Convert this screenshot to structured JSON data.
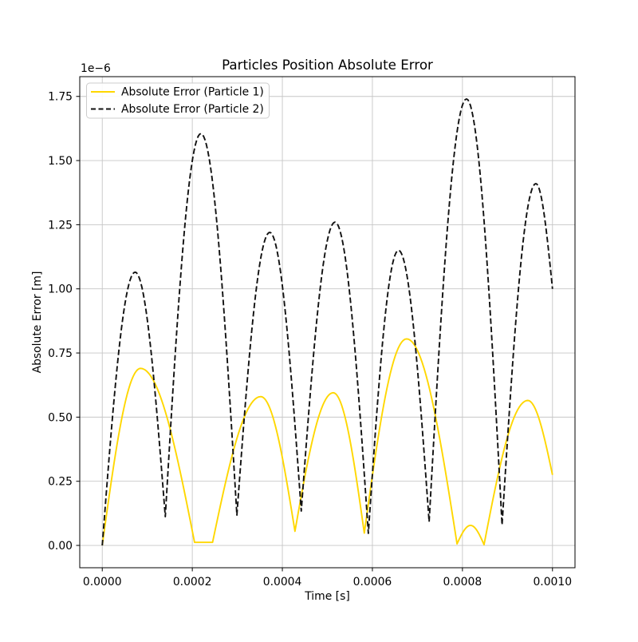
{
  "title": "Particles Position Absolute Error",
  "axes": {
    "xlabel": "Time [s]",
    "ylabel": "Absolute Error [m]",
    "offset_text": "1e−6",
    "x_tick_labels": [
      "0.0000",
      "0.0002",
      "0.0004",
      "0.0006",
      "0.0008",
      "0.0010"
    ],
    "x_tick_values": [
      0.0,
      0.0002,
      0.0004,
      0.0006,
      0.0008,
      0.001
    ],
    "y_tick_labels": [
      "0.00",
      "0.25",
      "0.50",
      "0.75",
      "1.00",
      "1.25",
      "1.50",
      "1.75"
    ],
    "y_tick_values": [
      0.0,
      0.25,
      0.5,
      0.75,
      1.0,
      1.25,
      1.5,
      1.75
    ]
  },
  "legend": {
    "position": "upper left",
    "entries": [
      {
        "label": "Absolute Error (Particle 1)",
        "color": "#FFD700",
        "style": "solid"
      },
      {
        "label": "Absolute Error (Particle 2)",
        "color": "#111111",
        "style": "dashed"
      }
    ]
  },
  "chart_data": {
    "type": "line",
    "title": "Particles Position Absolute Error",
    "xlabel": "Time [s]",
    "ylabel": "Absolute Error [m]",
    "y_scale_note": "y values are in units of 1e-6 m (axis offset text 1e-6)",
    "x_unit": "s",
    "grid": true,
    "legend_position": "upper left",
    "xlim": [
      -5e-05,
      0.00105
    ],
    "ylim": [
      -0.087,
      1.827
    ],
    "interpolation": "abs-sine lobes through anchor extrema (sharp valleys, rounded peaks)",
    "series": [
      {
        "name": "Absolute Error (Particle 1)",
        "color": "#FFD700",
        "style": "solid",
        "anchors": [
          [
            0.0,
            0.0
          ],
          [
            8.5e-05,
            0.69
          ],
          [
            0.000205,
            0.012
          ],
          [
            0.000245,
            0.012
          ],
          [
            0.000352,
            0.58
          ],
          [
            0.000428,
            0.055
          ],
          [
            0.000513,
            0.595
          ],
          [
            0.000582,
            0.048
          ],
          [
            0.000676,
            0.805
          ],
          [
            0.000788,
            0.006
          ],
          [
            0.000818,
            0.078
          ],
          [
            0.000848,
            0.003
          ],
          [
            0.000945,
            0.565
          ],
          [
            0.001,
            0.275
          ]
        ]
      },
      {
        "name": "Absolute Error (Particle 2)",
        "color": "#111111",
        "style": "dashed",
        "anchors": [
          [
            0.0,
            0.0
          ],
          [
            7.3e-05,
            1.065
          ],
          [
            0.00014,
            0.112
          ],
          [
            0.000219,
            1.605
          ],
          [
            0.000299,
            0.118
          ],
          [
            0.000372,
            1.22
          ],
          [
            0.000442,
            0.134
          ],
          [
            0.000517,
            1.26
          ],
          [
            0.000591,
            0.047
          ],
          [
            0.000658,
            1.15
          ],
          [
            0.000726,
            0.092
          ],
          [
            0.000809,
            1.74
          ],
          [
            0.000888,
            0.08
          ],
          [
            0.000963,
            1.41
          ],
          [
            0.001,
            1.0
          ]
        ]
      }
    ]
  }
}
